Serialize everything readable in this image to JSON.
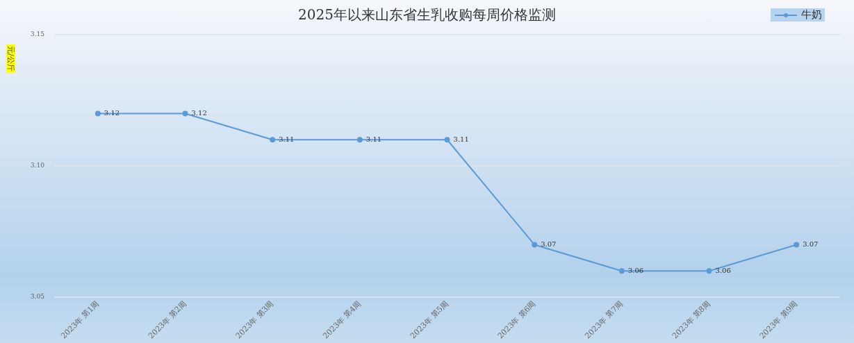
{
  "chart_data": {
    "type": "line",
    "title": "2025年以来山东省生乳收购每周价格监测",
    "ylabel": "元/公斤",
    "categories": [
      "2023年 第1周",
      "2023年 第2周",
      "2023年 第3周",
      "2023年 第4周",
      "2023年 第5周",
      "2023年 第6周",
      "2023年 第7周",
      "2023年 第8周",
      "2023年 第9周"
    ],
    "series": [
      {
        "name": "牛奶",
        "color": "#5b9bd5",
        "values": [
          3.12,
          3.12,
          3.11,
          3.11,
          3.11,
          3.07,
          3.06,
          3.06,
          3.07
        ]
      }
    ],
    "ylim": [
      3.05,
      3.15
    ],
    "yticks": [
      3.05,
      {
        "value": 3.1,
        "label": "3.10"
      },
      3.15
    ],
    "grid": "y",
    "legend": "top right",
    "marker": "circle",
    "line_style": "solid",
    "data_labels": true
  }
}
